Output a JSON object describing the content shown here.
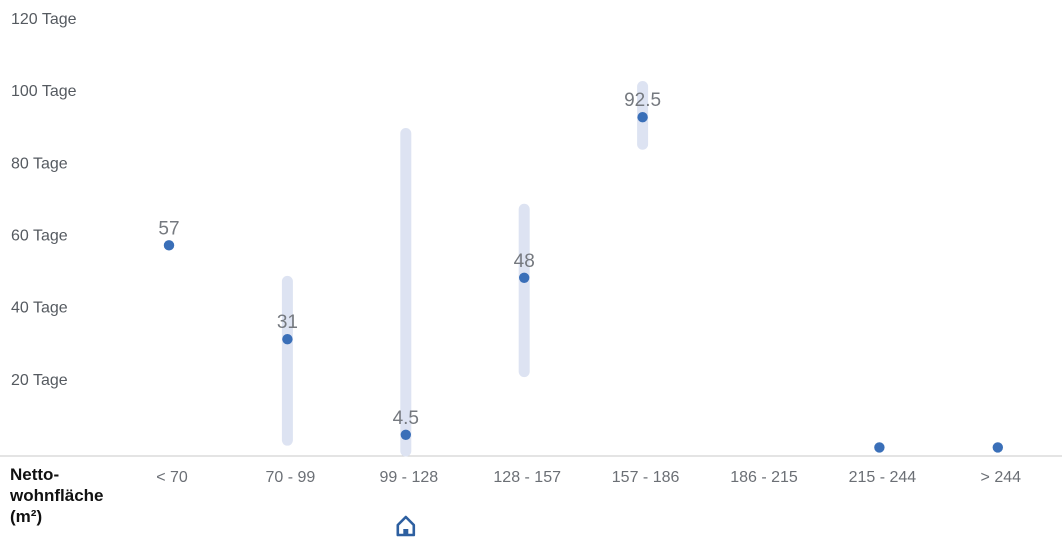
{
  "chart_data": {
    "type": "range-dot",
    "xlabel_lines": [
      "Netto-",
      "wohnfläche",
      "(m²)"
    ],
    "y_unit": "Tage",
    "ylim": [
      0,
      120
    ],
    "yticks": [
      "120 Tage",
      "100 Tage",
      "80 Tage",
      "60 Tage",
      "40 Tage",
      "20 Tage"
    ],
    "ytick_values": [
      120,
      100,
      80,
      60,
      40,
      20
    ],
    "categories": [
      "< 70",
      "70 - 99",
      "99 - 128",
      "128 - 157",
      "157 - 186",
      "186 - 215",
      "215 - 244",
      "> 244"
    ],
    "points": [
      {
        "category": "< 70",
        "value": 57,
        "label": "57",
        "range": null
      },
      {
        "category": "70 - 99",
        "value": 31,
        "label": "31",
        "range": [
          3,
          47
        ]
      },
      {
        "category": "99 - 128",
        "value": 4.5,
        "label": "4.5",
        "range": [
          0,
          88
        ]
      },
      {
        "category": "128 - 157",
        "value": 48,
        "label": "48",
        "range": [
          22,
          67
        ]
      },
      {
        "category": "157 - 186",
        "value": 92.5,
        "label": "92.5",
        "range": [
          85,
          101
        ]
      },
      {
        "category": "186 - 215",
        "value": null,
        "label": "",
        "range": null
      },
      {
        "category": "215 - 244",
        "value": 1,
        "label": "",
        "range": null
      },
      {
        "category": "> 244",
        "value": 1,
        "label": "",
        "range": null
      }
    ],
    "grid": false,
    "highlight_category": "99 - 128",
    "highlight_icon": "home-icon",
    "colors": {
      "dot": "#3a6fb8",
      "range": "#dde3f2",
      "axis": "#c8c8c8",
      "highlight_icon": "#2d5fa0"
    }
  }
}
